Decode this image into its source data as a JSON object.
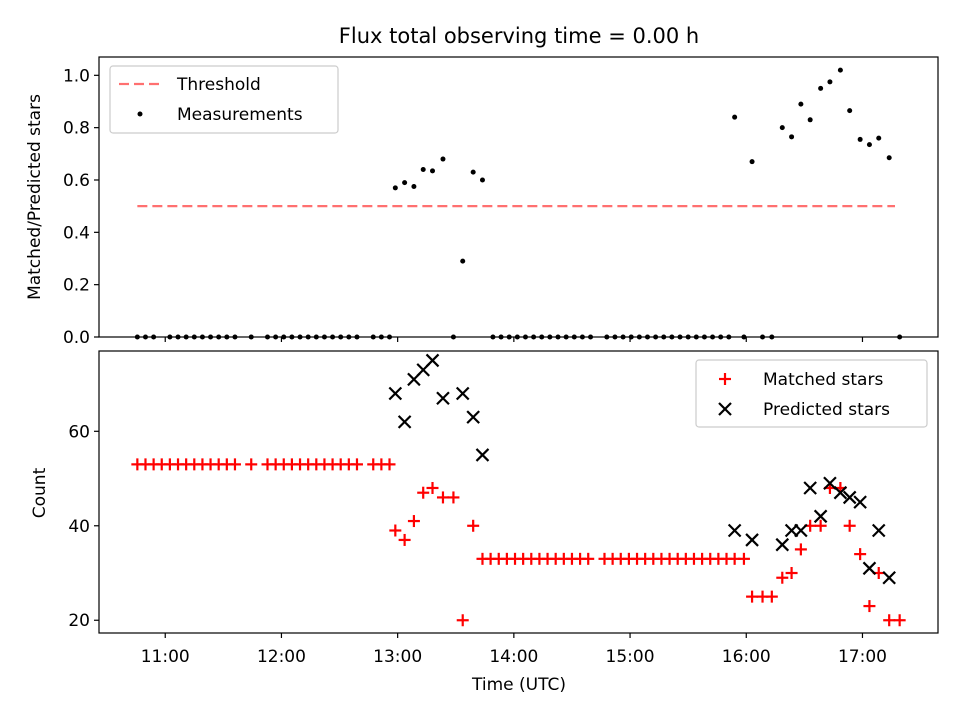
{
  "chart_data": {
    "type": "scatter",
    "title": "Flux total observing time = 0.00 h",
    "xlabel": "Time (UTC)",
    "x_unit": "hours UTC",
    "xlim": [
      10.43,
      17.65
    ],
    "x_ticks": [
      {
        "value": 11,
        "label": "11:00"
      },
      {
        "value": 12,
        "label": "12:00"
      },
      {
        "value": 13,
        "label": "13:00"
      },
      {
        "value": 14,
        "label": "14:00"
      },
      {
        "value": 15,
        "label": "15:00"
      },
      {
        "value": 16,
        "label": "16:00"
      },
      {
        "value": 17,
        "label": "17:00"
      }
    ],
    "panels": [
      {
        "id": "ratio",
        "ylabel": "Matched/Predicted stars",
        "ylim": [
          0,
          1.07
        ],
        "y_ticks": [
          {
            "value": 0.0,
            "label": "0.0"
          },
          {
            "value": 0.2,
            "label": "0.2"
          },
          {
            "value": 0.4,
            "label": "0.4"
          },
          {
            "value": 0.6,
            "label": "0.6"
          },
          {
            "value": 0.8,
            "label": "0.8"
          },
          {
            "value": 1.0,
            "label": "1.0"
          }
        ],
        "legend_position": "upper-left",
        "threshold": {
          "name": "Threshold",
          "value": 0.5,
          "x_range": [
            10.76,
            17.28
          ],
          "color": "#ff7070"
        },
        "series": [
          {
            "name": "Measurements",
            "marker": "dot",
            "color": "#000000",
            "points": [
              [
                10.76,
                0
              ],
              [
                10.83,
                0
              ],
              [
                10.9,
                0
              ],
              [
                11.04,
                0
              ],
              [
                11.11,
                0
              ],
              [
                11.18,
                0
              ],
              [
                11.25,
                0
              ],
              [
                11.32,
                0
              ],
              [
                11.39,
                0
              ],
              [
                11.46,
                0
              ],
              [
                11.53,
                0
              ],
              [
                11.6,
                0
              ],
              [
                11.74,
                0
              ],
              [
                11.88,
                0
              ],
              [
                11.95,
                0
              ],
              [
                12.02,
                0
              ],
              [
                12.09,
                0
              ],
              [
                12.16,
                0
              ],
              [
                12.23,
                0
              ],
              [
                12.3,
                0
              ],
              [
                12.37,
                0
              ],
              [
                12.44,
                0
              ],
              [
                12.51,
                0
              ],
              [
                12.58,
                0
              ],
              [
                12.65,
                0
              ],
              [
                12.79,
                0
              ],
              [
                12.86,
                0
              ],
              [
                12.93,
                0
              ],
              [
                12.98,
                0.57
              ],
              [
                13.06,
                0.59
              ],
              [
                13.14,
                0.575
              ],
              [
                13.22,
                0.64
              ],
              [
                13.3,
                0.635
              ],
              [
                13.39,
                0.68
              ],
              [
                13.48,
                0
              ],
              [
                13.56,
                0.29
              ],
              [
                13.65,
                0.63
              ],
              [
                13.73,
                0.6
              ],
              [
                13.82,
                0
              ],
              [
                13.89,
                0
              ],
              [
                13.96,
                0
              ],
              [
                14.03,
                0
              ],
              [
                14.1,
                0
              ],
              [
                14.17,
                0
              ],
              [
                14.24,
                0
              ],
              [
                14.31,
                0
              ],
              [
                14.38,
                0
              ],
              [
                14.45,
                0
              ],
              [
                14.52,
                0
              ],
              [
                14.59,
                0
              ],
              [
                14.66,
                0
              ],
              [
                14.8,
                0
              ],
              [
                14.87,
                0
              ],
              [
                14.94,
                0
              ],
              [
                15.01,
                0
              ],
              [
                15.08,
                0
              ],
              [
                15.15,
                0
              ],
              [
                15.22,
                0
              ],
              [
                15.29,
                0
              ],
              [
                15.36,
                0
              ],
              [
                15.43,
                0
              ],
              [
                15.5,
                0
              ],
              [
                15.57,
                0
              ],
              [
                15.64,
                0
              ],
              [
                15.71,
                0
              ],
              [
                15.78,
                0
              ],
              [
                15.85,
                0
              ],
              [
                15.9,
                0.84
              ],
              [
                15.98,
                0
              ],
              [
                16.05,
                0.67
              ],
              [
                16.14,
                0
              ],
              [
                16.22,
                0
              ],
              [
                16.31,
                0.8
              ],
              [
                16.39,
                0.765
              ],
              [
                16.47,
                0.89
              ],
              [
                16.55,
                0.83
              ],
              [
                16.64,
                0.95
              ],
              [
                16.72,
                0.975
              ],
              [
                16.81,
                1.02
              ],
              [
                16.89,
                0.865
              ],
              [
                16.98,
                0.755
              ],
              [
                17.06,
                0.735
              ],
              [
                17.14,
                0.76
              ],
              [
                17.23,
                0.685
              ],
              [
                17.32,
                0
              ]
            ]
          }
        ]
      },
      {
        "id": "counts",
        "ylabel": "Count",
        "ylim": [
          17.3,
          77
        ],
        "y_ticks": [
          {
            "value": 20,
            "label": "20"
          },
          {
            "value": 40,
            "label": "40"
          },
          {
            "value": 60,
            "label": "60"
          }
        ],
        "legend_position": "upper-right",
        "series": [
          {
            "name": "Matched stars",
            "marker": "plus",
            "color": "#ff0000",
            "points": [
              [
                10.76,
                53
              ],
              [
                10.83,
                53
              ],
              [
                10.9,
                53
              ],
              [
                10.97,
                53
              ],
              [
                11.04,
                53
              ],
              [
                11.11,
                53
              ],
              [
                11.18,
                53
              ],
              [
                11.25,
                53
              ],
              [
                11.32,
                53
              ],
              [
                11.39,
                53
              ],
              [
                11.46,
                53
              ],
              [
                11.53,
                53
              ],
              [
                11.6,
                53
              ],
              [
                11.74,
                53
              ],
              [
                11.88,
                53
              ],
              [
                11.95,
                53
              ],
              [
                12.02,
                53
              ],
              [
                12.09,
                53
              ],
              [
                12.16,
                53
              ],
              [
                12.23,
                53
              ],
              [
                12.3,
                53
              ],
              [
                12.37,
                53
              ],
              [
                12.44,
                53
              ],
              [
                12.51,
                53
              ],
              [
                12.58,
                53
              ],
              [
                12.65,
                53
              ],
              [
                12.79,
                53
              ],
              [
                12.86,
                53
              ],
              [
                12.93,
                53
              ],
              [
                12.98,
                39
              ],
              [
                13.06,
                37
              ],
              [
                13.14,
                41
              ],
              [
                13.22,
                47
              ],
              [
                13.3,
                48
              ],
              [
                13.39,
                46
              ],
              [
                13.48,
                46
              ],
              [
                13.56,
                20
              ],
              [
                13.65,
                40
              ],
              [
                13.73,
                33
              ],
              [
                13.8,
                33
              ],
              [
                13.87,
                33
              ],
              [
                13.94,
                33
              ],
              [
                14.01,
                33
              ],
              [
                14.08,
                33
              ],
              [
                14.15,
                33
              ],
              [
                14.22,
                33
              ],
              [
                14.29,
                33
              ],
              [
                14.36,
                33
              ],
              [
                14.43,
                33
              ],
              [
                14.5,
                33
              ],
              [
                14.57,
                33
              ],
              [
                14.64,
                33
              ],
              [
                14.78,
                33
              ],
              [
                14.85,
                33
              ],
              [
                14.92,
                33
              ],
              [
                14.99,
                33
              ],
              [
                15.06,
                33
              ],
              [
                15.13,
                33
              ],
              [
                15.2,
                33
              ],
              [
                15.27,
                33
              ],
              [
                15.34,
                33
              ],
              [
                15.41,
                33
              ],
              [
                15.48,
                33
              ],
              [
                15.55,
                33
              ],
              [
                15.62,
                33
              ],
              [
                15.69,
                33
              ],
              [
                15.76,
                33
              ],
              [
                15.83,
                33
              ],
              [
                15.9,
                33
              ],
              [
                15.98,
                33
              ],
              [
                16.05,
                25
              ],
              [
                16.14,
                25
              ],
              [
                16.22,
                25
              ],
              [
                16.31,
                29
              ],
              [
                16.39,
                30
              ],
              [
                16.47,
                35
              ],
              [
                16.55,
                40
              ],
              [
                16.64,
                40
              ],
              [
                16.72,
                48
              ],
              [
                16.81,
                48
              ],
              [
                16.89,
                40
              ],
              [
                16.98,
                34
              ],
              [
                17.06,
                23
              ],
              [
                17.14,
                30
              ],
              [
                17.23,
                20
              ],
              [
                17.32,
                20
              ]
            ]
          },
          {
            "name": "Predicted stars",
            "marker": "x",
            "color": "#000000",
            "points": [
              [
                12.98,
                68
              ],
              [
                13.06,
                62
              ],
              [
                13.14,
                71
              ],
              [
                13.22,
                73
              ],
              [
                13.3,
                75
              ],
              [
                13.39,
                67
              ],
              [
                13.56,
                68
              ],
              [
                13.65,
                63
              ],
              [
                13.73,
                55
              ],
              [
                15.9,
                39
              ],
              [
                16.05,
                37
              ],
              [
                16.31,
                36
              ],
              [
                16.39,
                39
              ],
              [
                16.47,
                39
              ],
              [
                16.55,
                48
              ],
              [
                16.64,
                42
              ],
              [
                16.72,
                49
              ],
              [
                16.81,
                47
              ],
              [
                16.89,
                46
              ],
              [
                16.98,
                45
              ],
              [
                17.06,
                31
              ],
              [
                17.14,
                39
              ],
              [
                17.23,
                29
              ]
            ]
          }
        ]
      }
    ]
  }
}
